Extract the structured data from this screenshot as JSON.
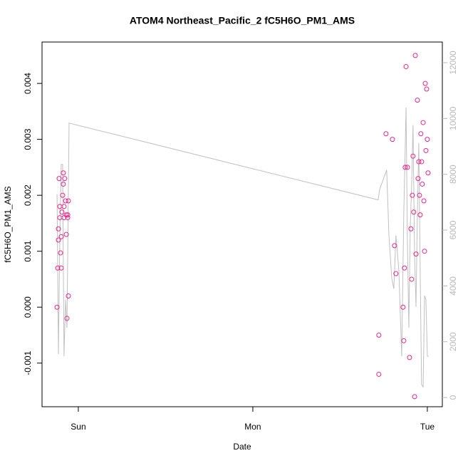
{
  "chart_data": {
    "type": "scatter",
    "title": "ATOM4 Northeast_Pacific_2 fC5H6O_PM1_AMS",
    "x_label": "Date",
    "y_label": "fC5H6O_PM1_AMS",
    "xlim": [
      -0.208,
      2.086
    ],
    "xticks": [
      {
        "value": 0,
        "label": "Sun"
      },
      {
        "value": 1,
        "label": "Mon"
      },
      {
        "value": 2,
        "label": "Tue"
      }
    ],
    "ylim": [
      -0.00178,
      0.00474
    ],
    "yticks": [
      -0.001,
      {
        "value": 0,
        "label": "0.000"
      },
      0.001,
      0.002,
      0.003,
      0.004
    ],
    "y2lim": [
      -330,
      12740
    ],
    "y2ticks": [
      0,
      2000,
      4000,
      6000,
      8000,
      10000,
      12000
    ],
    "series": [
      {
        "type": "scatter",
        "color": "#e8268a",
        "x": [
          -0.122,
          -0.118,
          -0.114,
          -0.114,
          -0.11,
          -0.106,
          -0.106,
          -0.102,
          -0.098,
          -0.098,
          -0.094,
          -0.09,
          -0.086,
          -0.086,
          -0.082,
          -0.082,
          -0.078,
          -0.073,
          -0.069,
          -0.069,
          -0.065,
          -0.061,
          -0.061,
          -0.057,
          -0.057,
          1.722,
          1.722,
          1.763,
          1.8,
          1.812,
          1.82,
          1.861,
          1.865,
          1.869,
          1.873,
          1.878,
          1.886,
          1.898,
          1.906,
          1.91,
          1.914,
          1.918,
          1.922,
          1.927,
          1.931,
          1.935,
          1.943,
          1.947,
          1.951,
          1.955,
          1.959,
          1.963,
          1.967,
          1.971,
          1.976,
          1.98,
          1.984,
          1.988,
          1.992,
          1.996,
          2.0,
          2.004
        ],
        "values": [
          0.0,
          0.0007,
          0.0014,
          0.0012,
          0.0023,
          0.0018,
          0.0016,
          0.00097,
          0.0007,
          0.00126,
          0.0017,
          0.002,
          0.0024,
          0.0022,
          0.0018,
          0.0016,
          0.0023,
          0.0019,
          0.0013,
          0.00165,
          -0.0002,
          0.00165,
          0.0016,
          0.0002,
          0.0019,
          -0.0005,
          -0.0012,
          0.0031,
          0.003,
          0.0011,
          0.0006,
          0.0,
          -0.0006,
          0.0007,
          0.0025,
          0.0043,
          0.0025,
          -0.0009,
          0.0014,
          0.0005,
          0.002,
          0.0027,
          0.0017,
          -0.0016,
          0.0045,
          0.00095,
          0.0037,
          0.0023,
          0.0026,
          0.002,
          0.00165,
          0.0031,
          0.0026,
          0.0022,
          0.0033,
          0.0019,
          0.001,
          0.004,
          0.0028,
          0.0039,
          0.003,
          0.0024
        ]
      },
      {
        "type": "line",
        "axis": "y2",
        "color": "#c0c0c0",
        "x": [
          -0.122,
          -0.114,
          -0.106,
          -0.098,
          -0.09,
          -0.082,
          -0.073,
          -0.065,
          -0.053,
          1.718,
          1.727,
          1.767,
          1.78,
          1.796,
          1.808,
          1.82,
          1.837,
          1.853,
          1.865,
          1.878,
          1.886,
          1.894,
          1.902,
          1.91,
          1.918,
          1.927,
          1.935,
          1.943,
          1.951,
          1.959,
          1.967,
          1.976,
          1.984,
          1.992,
          2.0,
          2.008
        ],
        "values": [
          7287,
          1554,
          5809,
          8357,
          8357,
          1478,
          3516,
          2497,
          9835,
          7083,
          7465,
          8153,
          5809,
          4280,
          3898,
          5809,
          4535,
          1478,
          6573,
          10395,
          5554,
          2497,
          6064,
          7592,
          9758,
          5045,
          3261,
          6573,
          9121,
          4535,
          458,
          382,
          3643,
          3516,
          1478,
          1478
        ]
      }
    ]
  }
}
